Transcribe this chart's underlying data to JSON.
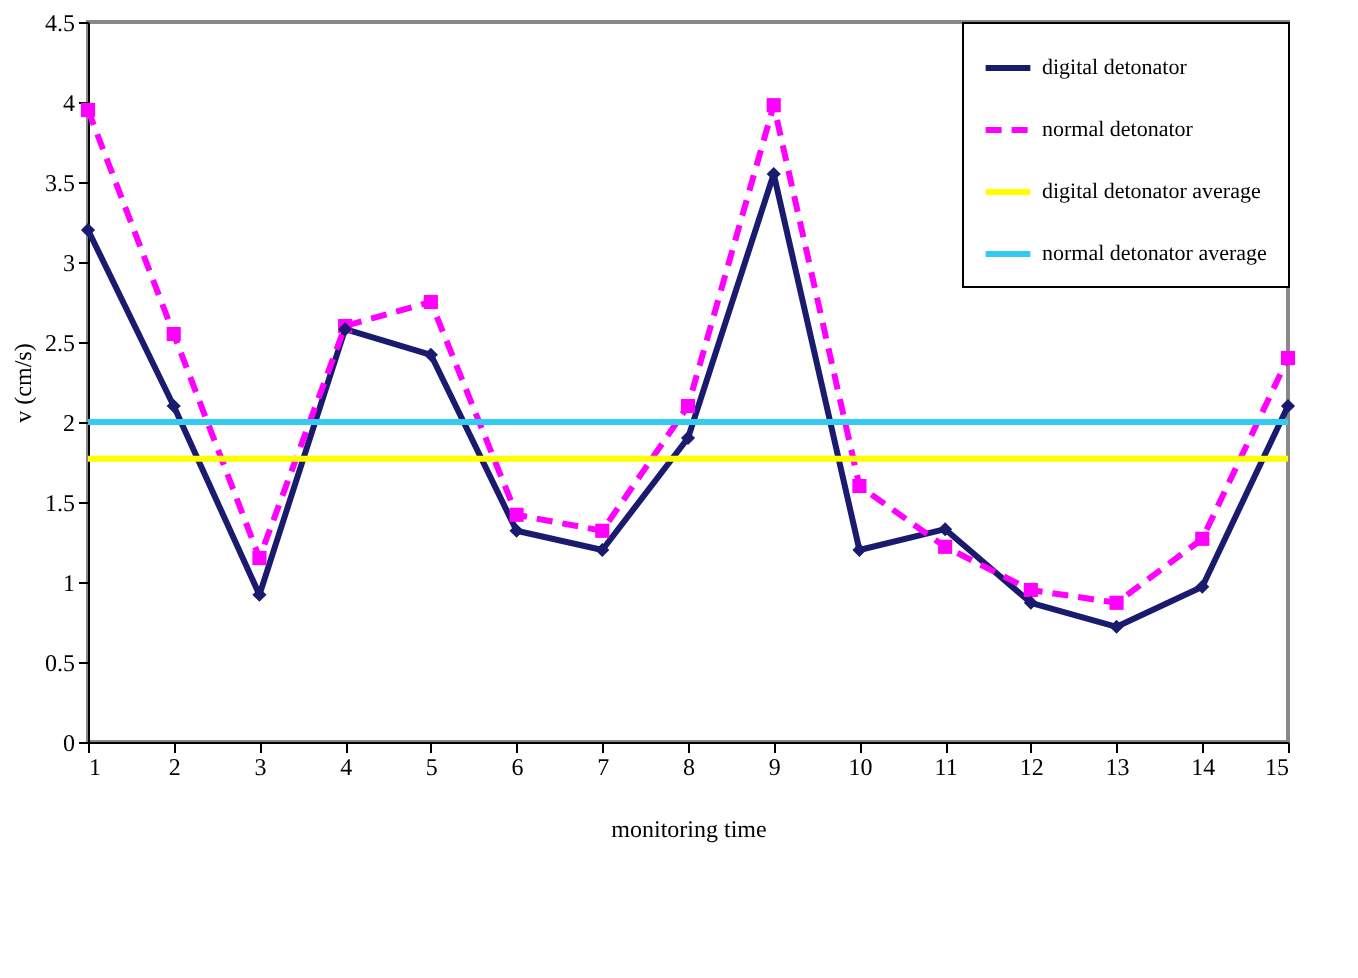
{
  "chart_data": {
    "type": "line",
    "xlabel": "monitoring time",
    "ylabel": "v (cm/s)",
    "x": [
      1,
      2,
      3,
      4,
      5,
      6,
      7,
      8,
      9,
      10,
      11,
      12,
      13,
      14,
      15
    ],
    "xlim": [
      1,
      15
    ],
    "xticks": [
      1,
      2,
      3,
      4,
      5,
      6,
      7,
      8,
      9,
      10,
      11,
      12,
      13,
      14,
      15
    ],
    "ylim": [
      0,
      4.5
    ],
    "yticks": [
      0,
      0.5,
      1,
      1.5,
      2,
      2.5,
      3,
      3.5,
      4,
      4.5
    ],
    "grid": false,
    "legend": "top right",
    "series": [
      {
        "name": "digital detonator",
        "color": "#1a1a6e",
        "marker": "diamond",
        "line_style": "solid",
        "values": [
          3.2,
          2.1,
          0.92,
          2.58,
          2.42,
          1.32,
          1.2,
          1.9,
          3.55,
          1.2,
          1.33,
          0.87,
          0.72,
          0.97,
          2.1
        ]
      },
      {
        "name": "normal detonator",
        "color": "#ff00ff",
        "marker": "square",
        "line_style": "dashed",
        "values": [
          3.95,
          2.55,
          1.15,
          2.6,
          2.75,
          1.42,
          1.32,
          2.1,
          3.98,
          1.6,
          1.22,
          0.95,
          0.87,
          1.27,
          2.4
        ]
      },
      {
        "name": "digital detonator average",
        "color": "#ffff00",
        "marker": "none",
        "line_style": "solid",
        "values": [
          1.77,
          1.77,
          1.77,
          1.77,
          1.77,
          1.77,
          1.77,
          1.77,
          1.77,
          1.77,
          1.77,
          1.77,
          1.77,
          1.77,
          1.77
        ]
      },
      {
        "name": "normal detonator average",
        "color": "#33ccee",
        "marker": "none",
        "line_style": "solid",
        "values": [
          2.0,
          2.0,
          2.0,
          2.0,
          2.0,
          2.0,
          2.0,
          2.0,
          2.0,
          2.0,
          2.0,
          2.0,
          2.0,
          2.0,
          2.0
        ]
      }
    ]
  }
}
